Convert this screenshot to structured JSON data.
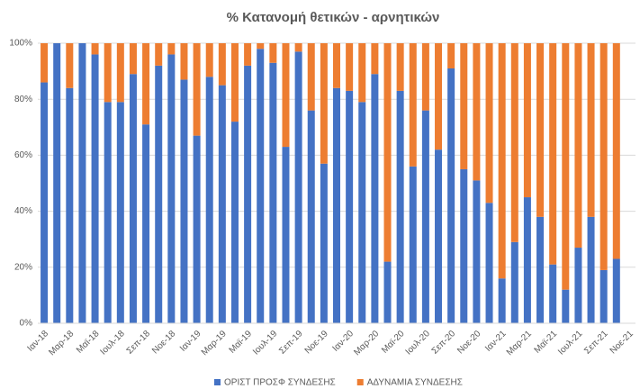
{
  "chart_data": {
    "type": "stacked_bar_100",
    "title": "% Κατανομή θετικών - αρνητικών",
    "categories": [
      "Ιαν-18",
      null,
      "Μαρ-18",
      null,
      "Μαϊ-18",
      null,
      "Ιουλ-18",
      null,
      "Σεπ-18",
      null,
      "Νοε-18",
      null,
      "Ιαν-19",
      null,
      "Μαρ-19",
      null,
      "Μαϊ-19",
      null,
      "Ιουλ-19",
      null,
      "Σεπ-19",
      null,
      "Νοε-19",
      null,
      "Ιαν-20",
      null,
      "Μαρ-20",
      null,
      "Μαϊ-20",
      null,
      "Ιουλ-20",
      null,
      "Σεπ-20",
      null,
      "Νοε-20",
      null,
      "Ιαν-21",
      null,
      "Μαρ-21",
      null,
      "Μαϊ-21",
      null,
      "Ιουλ-21",
      null,
      "Σεπ-21",
      null,
      "Νοε-21"
    ],
    "series": [
      {
        "name": "ΟΡΙΣΤ ΠΡΟΣΦ ΣΥΝΔΕΣΗΣ",
        "color": "#4472c4",
        "values": [
          86,
          100,
          84,
          100,
          96,
          79,
          79,
          89,
          71,
          92,
          96,
          87,
          67,
          88,
          85,
          72,
          92,
          98,
          93,
          63,
          97,
          76,
          57,
          84,
          83,
          79,
          89,
          22,
          83,
          56,
          76,
          62,
          91,
          55,
          51,
          43,
          16,
          29,
          45,
          38,
          21,
          12,
          27,
          38,
          19,
          23,
          null
        ]
      },
      {
        "name": "ΑΔΥΝΑΜΙΑ ΣΥΝΔΕΣΗΣ",
        "color": "#ed7d31",
        "values": [
          14,
          0,
          16,
          0,
          4,
          21,
          21,
          11,
          29,
          8,
          4,
          13,
          33,
          12,
          15,
          28,
          8,
          2,
          7,
          37,
          3,
          24,
          43,
          16,
          17,
          21,
          11,
          78,
          17,
          44,
          24,
          38,
          9,
          45,
          49,
          57,
          84,
          71,
          55,
          62,
          79,
          88,
          73,
          62,
          81,
          77,
          null
        ]
      }
    ],
    "ylim": [
      0,
      100
    ],
    "yticks": [
      {
        "value": 0,
        "label": "0%"
      },
      {
        "value": 20,
        "label": "20%"
      },
      {
        "value": 40,
        "label": "40%"
      },
      {
        "value": 60,
        "label": "60%"
      },
      {
        "value": 80,
        "label": "80%"
      },
      {
        "value": 100,
        "label": "100%"
      }
    ],
    "grid": true,
    "legend": "bottom"
  }
}
